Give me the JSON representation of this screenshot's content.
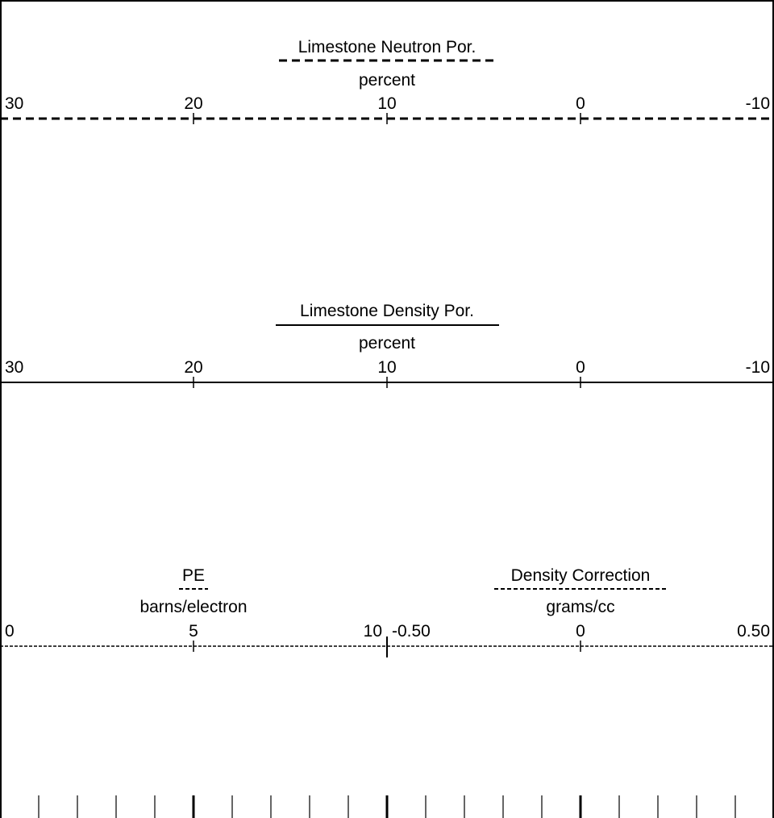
{
  "chart_data": {
    "type": "log-header",
    "tracks": [
      {
        "title": "Limestone Neutron Por.",
        "units": "percent",
        "line_style": "dashed-heavy",
        "scale": {
          "left": 30,
          "right": -10
        },
        "ticks": [
          {
            "value": 30,
            "label": "30"
          },
          {
            "value": 20,
            "label": "20"
          },
          {
            "value": 10,
            "label": "10"
          },
          {
            "value": 0,
            "label": "0"
          },
          {
            "value": -10,
            "label": "-10"
          }
        ]
      },
      {
        "title": "Limestone Density Por.",
        "units": "percent",
        "line_style": "solid",
        "scale": {
          "left": 30,
          "right": -10
        },
        "ticks": [
          {
            "value": 30,
            "label": "30"
          },
          {
            "value": 20,
            "label": "20"
          },
          {
            "value": 10,
            "label": "10"
          },
          {
            "value": 0,
            "label": "0"
          },
          {
            "value": -10,
            "label": "-10"
          }
        ]
      }
    ],
    "split_track": {
      "left": {
        "title": "PE",
        "units": "barns/electron",
        "line_style": "dashed-fine",
        "scale": {
          "left": 0,
          "right": 10
        },
        "ticks": [
          {
            "value": 0,
            "label": "0"
          },
          {
            "value": 5,
            "label": "5"
          },
          {
            "value": 10,
            "label": "10"
          }
        ]
      },
      "right": {
        "title": "Density Correction",
        "units": "grams/cc",
        "line_style": "dashed-fine",
        "scale": {
          "left": -0.5,
          "right": 0.5
        },
        "ticks": [
          {
            "value": -0.5,
            "label": "-0.50"
          },
          {
            "value": 0,
            "label": "0"
          },
          {
            "value": 0.5,
            "label": "0.50"
          }
        ]
      }
    },
    "grid": {
      "divisions": 20,
      "major_every": 5
    }
  }
}
